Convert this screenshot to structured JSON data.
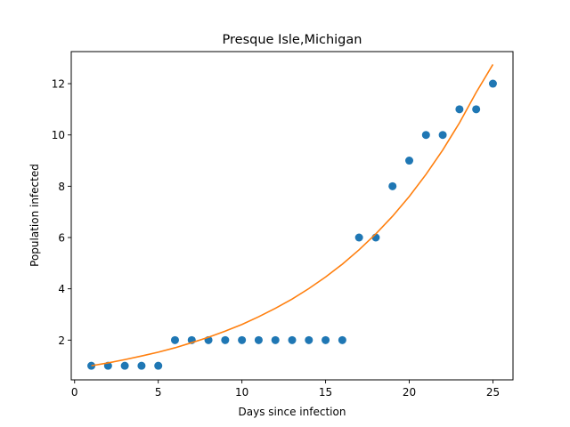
{
  "chart_data": {
    "type": "scatter",
    "title": "Presque Isle,Michigan",
    "xlabel": "Days since infection",
    "ylabel": "Population infected",
    "xlim": [
      -0.2,
      26.2
    ],
    "ylim": [
      0.45,
      13.25
    ],
    "xticks": [
      0,
      5,
      10,
      15,
      20,
      25
    ],
    "yticks": [
      2,
      4,
      6,
      8,
      10,
      12
    ],
    "grid": false,
    "series": [
      {
        "type": "scatter",
        "color": "#1f77b4",
        "x": [
          1,
          2,
          3,
          4,
          5,
          6,
          7,
          8,
          9,
          10,
          11,
          12,
          13,
          14,
          15,
          16,
          17,
          18,
          19,
          20,
          21,
          22,
          23,
          24,
          25
        ],
        "y": [
          1,
          1,
          1,
          1,
          1,
          2,
          2,
          2,
          2,
          2,
          2,
          2,
          2,
          2,
          2,
          2,
          6,
          6,
          8,
          9,
          10,
          10,
          11,
          11,
          12
        ]
      },
      {
        "type": "line",
        "color": "#ff7f0e",
        "x": [
          1,
          2,
          3,
          4,
          5,
          6,
          7,
          8,
          9,
          10,
          11,
          12,
          13,
          14,
          15,
          16,
          17,
          18,
          19,
          20,
          21,
          22,
          23,
          24,
          25
        ],
        "y": [
          1.0,
          1.11,
          1.24,
          1.38,
          1.53,
          1.7,
          1.9,
          2.11,
          2.35,
          2.61,
          2.91,
          3.24,
          3.6,
          4.01,
          4.46,
          4.96,
          5.52,
          6.14,
          6.83,
          7.6,
          8.46,
          9.41,
          10.47,
          11.66,
          12.75
        ]
      }
    ]
  }
}
